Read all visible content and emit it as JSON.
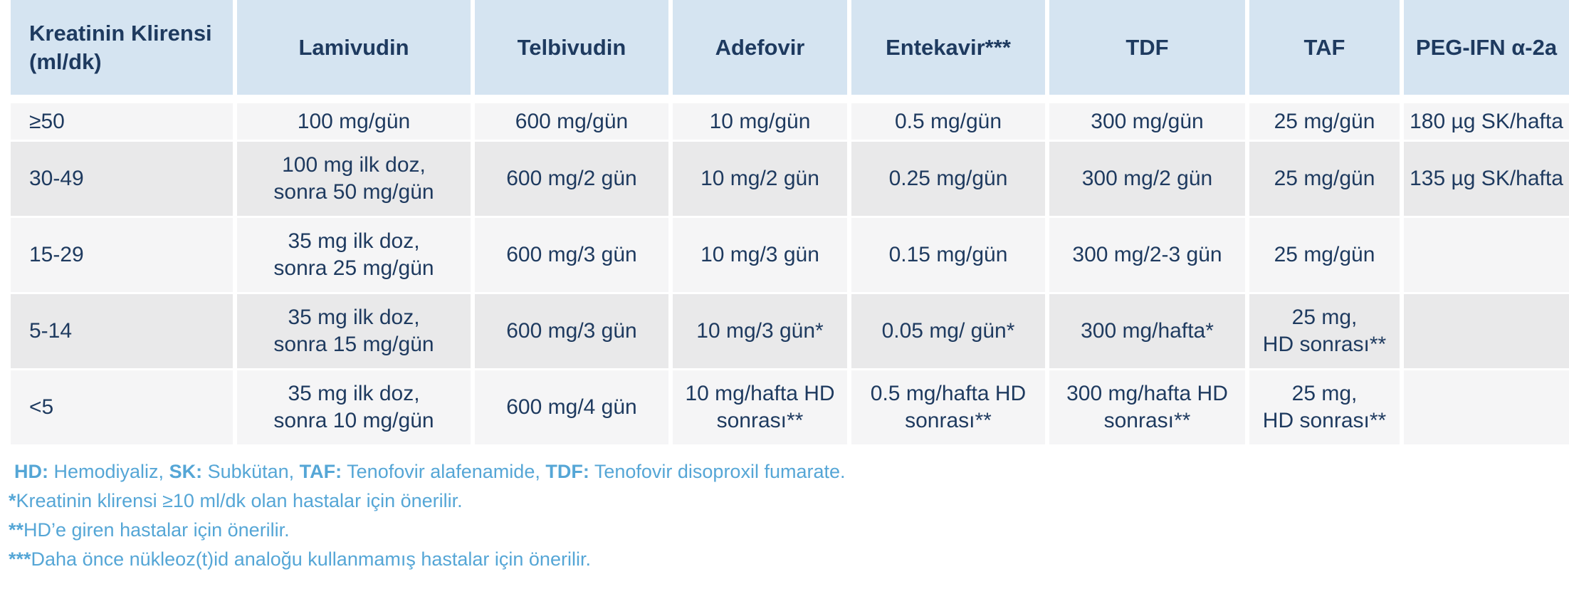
{
  "table": {
    "columns": [
      "Kreatinin Klirensi\n(ml/dk)",
      "Lamivudin",
      "Telbivudin",
      "Adefovir",
      "Entekavir***",
      "TDF",
      "TAF",
      "PEG-IFN α-2a"
    ],
    "rows": [
      [
        "≥50",
        "100 mg/gün",
        "600 mg/gün",
        "10 mg/gün",
        "0.5 mg/gün",
        "300 mg/gün",
        "25 mg/gün",
        "180 µg SK/hafta"
      ],
      [
        "30-49",
        "100 mg ilk doz,\nsonra 50 mg/gün",
        "600 mg/2 gün",
        "10 mg/2 gün",
        "0.25 mg/gün",
        "300 mg/2 gün",
        "25 mg/gün",
        "135 µg SK/hafta"
      ],
      [
        "15-29",
        "35 mg ilk doz,\nsonra 25 mg/gün",
        "600 mg/3 gün",
        "10 mg/3 gün",
        "0.15 mg/gün",
        "300 mg/2-3 gün",
        "25 mg/gün",
        ""
      ],
      [
        "5-14",
        "35 mg ilk doz,\nsonra 15 mg/gün",
        "600 mg/3 gün",
        "10 mg/3 gün*",
        "0.05 mg/ gün*",
        "300 mg/hafta*",
        "25 mg,\nHD sonrası**",
        ""
      ],
      [
        "<5",
        "35 mg ilk doz,\nsonra 10 mg/gün",
        "600 mg/4 gün",
        "10 mg/hafta HD\nsonrası**",
        "0.5 mg/hafta HD\nsonrası**",
        "300 mg/hafta HD\nsonrası**",
        "25 mg,\nHD sonrası**",
        ""
      ]
    ]
  },
  "footnotes": [
    {
      "segments": [
        {
          "text": "HD:",
          "bold": true
        },
        {
          "text": " Hemodiyaliz, ",
          "bold": false
        },
        {
          "text": "SK:",
          "bold": true
        },
        {
          "text": " Subkütan, ",
          "bold": false
        },
        {
          "text": "TAF:",
          "bold": true
        },
        {
          "text": " Tenofovir alafenamide, ",
          "bold": false
        },
        {
          "text": "TDF:",
          "bold": true
        },
        {
          "text": " Tenofovir disoproxil fumarate.",
          "bold": false
        }
      ]
    },
    {
      "segments": [
        {
          "text": "*",
          "bold": true
        },
        {
          "text": "Kreatinin klirensi ≥10 ml/dk olan hastalar için önerilir.",
          "bold": false
        }
      ]
    },
    {
      "segments": [
        {
          "text": "**",
          "bold": true
        },
        {
          "text": "HD’e giren hastalar için önerilir.",
          "bold": false
        }
      ]
    },
    {
      "segments": [
        {
          "text": "***",
          "bold": true
        },
        {
          "text": "Daha önce nükleoz(t)id analoğu kullanmamış hastalar için önerilir.",
          "bold": false
        }
      ]
    }
  ],
  "colors": {
    "header_bg": "#d5e4f1",
    "row_light": "#f5f5f6",
    "row_dark": "#e9e9ea",
    "text_navy": "#1e3a5f",
    "footnote_blue": "#55a6d6"
  }
}
